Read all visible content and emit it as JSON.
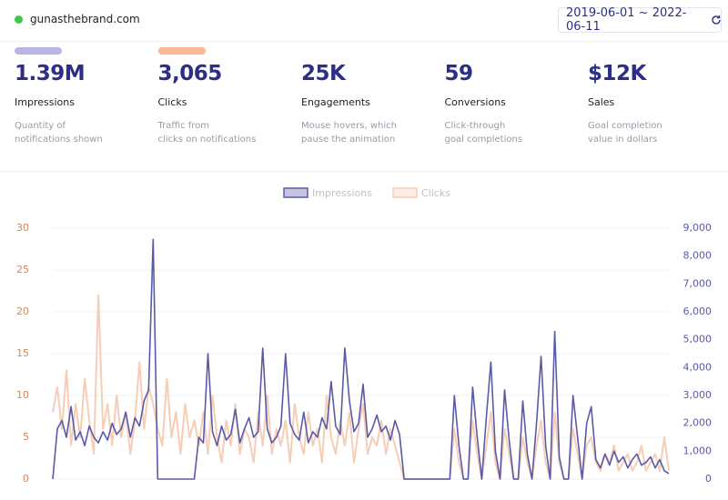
{
  "header": {
    "site": "gunasthebrand.com",
    "date_range": "2019-06-01 ~ 2022-06-11"
  },
  "metrics": [
    {
      "value": "1.39M",
      "label": "Impressions",
      "description": [
        "Quantity of",
        "notifications shown"
      ],
      "bar_color": "#b9b6e6"
    },
    {
      "value": "3,065",
      "label": "Clicks",
      "description": [
        "Traffic from",
        "clicks on notifications"
      ],
      "bar_color": "#f8b894"
    },
    {
      "value": "25K",
      "label": "Engagements",
      "description": [
        "Mouse hovers, which",
        "pause the animation"
      ]
    },
    {
      "value": "59",
      "label": "Conversions",
      "description": [
        "Click-through",
        "goal completions"
      ]
    },
    {
      "value": "$12K",
      "label": "Sales",
      "description": [
        "Goal completion",
        "value in dollars"
      ]
    }
  ],
  "chart_data": {
    "type": "line",
    "grid": true,
    "ylim": [
      0,
      30
    ],
    "yticks": [
      0,
      5,
      10,
      15,
      20,
      25,
      30
    ],
    "y2lim": [
      0,
      9000
    ],
    "y2ticks": [
      0,
      {
        "value": 1000,
        "label": "1,000"
      },
      {
        "value": 2000,
        "label": "2,000"
      },
      {
        "value": 3000,
        "label": "3,000"
      },
      {
        "value": 4000,
        "label": "4,000"
      },
      {
        "value": 5000,
        "label": "5,000"
      },
      {
        "value": 6000,
        "label": "6,000"
      },
      {
        "value": 7000,
        "label": "7,000"
      },
      {
        "value": 8000,
        "label": "8,000"
      },
      {
        "value": 9000,
        "label": "9,000"
      }
    ],
    "series": [
      {
        "name": "Impressions",
        "color": "#5a5aa8",
        "axis": "y2",
        "values": [
          0,
          1800,
          2100,
          1500,
          2600,
          1400,
          1700,
          1200,
          1900,
          1500,
          1300,
          1700,
          1400,
          2000,
          1600,
          1800,
          2400,
          1500,
          2200,
          1900,
          2800,
          3200,
          8600,
          0,
          0,
          0,
          0,
          0,
          0,
          0,
          0,
          0,
          1500,
          1300,
          4500,
          1700,
          1200,
          1900,
          1400,
          1600,
          2500,
          1300,
          1800,
          2200,
          1500,
          1700,
          4700,
          1800,
          1300,
          1500,
          1900,
          4500,
          2000,
          1600,
          1400,
          2400,
          1300,
          1700,
          1500,
          2200,
          1800,
          3500,
          1900,
          1600,
          4700,
          2800,
          1700,
          2000,
          3400,
          1500,
          1800,
          2300,
          1700,
          1900,
          1400,
          2100,
          1600,
          0,
          0,
          0,
          0,
          0,
          0,
          0,
          0,
          0,
          0,
          0,
          3000,
          1200,
          0,
          0,
          3300,
          1500,
          0,
          2200,
          4200,
          1000,
          0,
          3200,
          1400,
          0,
          0,
          2800,
          900,
          0,
          2000,
          4400,
          1200,
          0,
          5300,
          800,
          0,
          0,
          3000,
          1500,
          0,
          2000,
          2600,
          700,
          400,
          900,
          500,
          1000,
          600,
          800,
          400,
          700,
          900,
          500,
          600,
          800,
          400,
          700,
          300,
          200
        ]
      },
      {
        "name": "Clicks",
        "color": "#f6cdb5",
        "values": [
          8,
          11,
          6,
          13,
          4,
          9,
          5,
          12,
          7,
          3,
          22,
          6,
          9,
          4,
          10,
          5,
          8,
          3,
          7,
          14,
          6,
          11,
          9,
          6,
          4,
          12,
          5,
          8,
          3,
          9,
          5,
          7,
          4,
          8,
          3,
          10,
          5,
          2,
          7,
          4,
          9,
          3,
          6,
          5,
          2,
          8,
          4,
          10,
          3,
          6,
          4,
          7,
          2,
          9,
          5,
          3,
          8,
          4,
          6,
          2,
          10,
          5,
          3,
          7,
          4,
          8,
          2,
          6,
          9,
          3,
          5,
          4,
          7,
          3,
          6,
          4,
          2,
          0,
          0,
          0,
          0,
          0,
          0,
          0,
          0,
          0,
          0,
          0,
          6,
          2,
          0,
          0,
          7,
          3,
          0,
          4,
          8,
          2,
          0,
          6,
          3,
          0,
          0,
          5,
          2,
          0,
          4,
          7,
          2,
          0,
          8,
          2,
          0,
          0,
          6,
          3,
          0,
          4,
          5,
          2,
          1,
          3,
          2,
          4,
          1,
          2,
          3,
          1,
          2,
          4,
          1,
          2,
          3,
          1,
          5,
          1
        ]
      }
    ]
  }
}
